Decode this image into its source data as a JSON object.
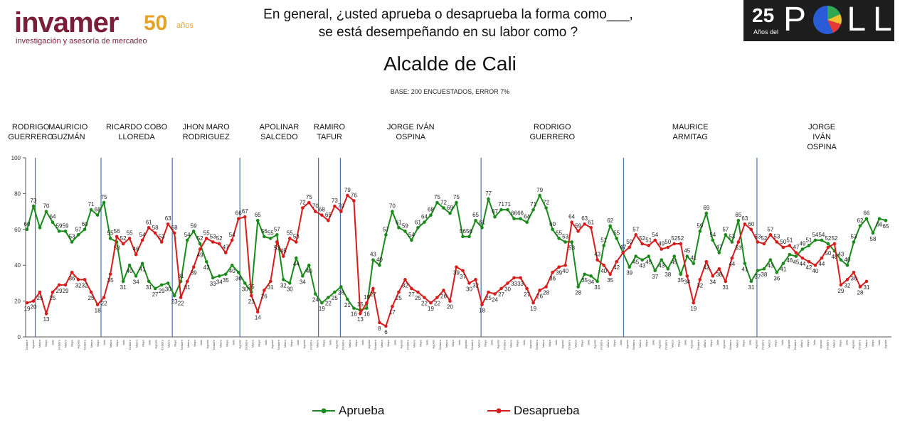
{
  "header": {
    "logo_word": "invamer",
    "logo_50": "50",
    "logo_anos": "años",
    "logo_tagline": "investigación y asesoría de mercadeo",
    "question_line1": "En general, ¿usted aprueba o desaprueba la forma como___,",
    "question_line2": "se está desempeñando en su labor como ?",
    "poll_25": "25",
    "poll_anos": "Años del",
    "poll_word": "POLL"
  },
  "chart_data": {
    "type": "line",
    "title": "Alcalde de Cali",
    "subtitle": "BASE: 200 ENCUESTADOS, ERROR 7%",
    "ylim": [
      0,
      100
    ],
    "yticks": [
      0,
      20,
      40,
      60,
      80,
      100
    ],
    "grid": false,
    "legend_position": "bottom",
    "periods": [
      {
        "label": "RODRIGO\nGUERRERO"
      },
      {
        "label": "MAURICIO\nGUZMÁN"
      },
      {
        "label": "RICARDO COBO\nLLOREDA"
      },
      {
        "label": "JHON MARO\nRODRIGUEZ"
      },
      {
        "label": "APOLINAR\nSALCEDO"
      },
      {
        "label": "RAMIRO\nTAFUR"
      },
      {
        "label": "JORGE IVÁN\nOSPINA"
      },
      {
        "label": "RODRIGO\nGUERRERO"
      },
      {
        "label": "MAURICE\nARMITAG"
      },
      {
        "label": "JORGE\nIVÁN\nOSPINA"
      }
    ],
    "series": [
      {
        "name": "Aprueba",
        "color": "#1a8a1a",
        "values": [
          60,
          73,
          61,
          70,
          64,
          59,
          59,
          53,
          57,
          60,
          71,
          68,
          75,
          55,
          53,
          31,
          40,
          34,
          41,
          31,
          27,
          29,
          30,
          23,
          31,
          54,
          59,
          52,
          42,
          33,
          34,
          35,
          40,
          36,
          30,
          25,
          65,
          56,
          55,
          57,
          32,
          30,
          44,
          34,
          40,
          24,
          19,
          22,
          25,
          28,
          21,
          16,
          15,
          16,
          43,
          40,
          57,
          70,
          61,
          59,
          54,
          61,
          64,
          68,
          75,
          72,
          69,
          75,
          56,
          56,
          65,
          61,
          77,
          67,
          71,
          71,
          66,
          66,
          64,
          71,
          79,
          72,
          60,
          55,
          53,
          53,
          28,
          35,
          34,
          31,
          51,
          62,
          55,
          47,
          39,
          45,
          43,
          45,
          37,
          43,
          38,
          45,
          35,
          45,
          41,
          59,
          69,
          54,
          47,
          57,
          53,
          65,
          41,
          31,
          37,
          38,
          43,
          36,
          41,
          46,
          45,
          49,
          51,
          54,
          54,
          52,
          48,
          43,
          40,
          53,
          62,
          66,
          58,
          66,
          65
        ],
        "labels": [
          60,
          73,
          null,
          70,
          64,
          59,
          59,
          53,
          57,
          60,
          71,
          68,
          75,
          55,
          53,
          31,
          40,
          34,
          41,
          31,
          27,
          29,
          30,
          23,
          31,
          54,
          59,
          52,
          42,
          33,
          34,
          35,
          40,
          36,
          30,
          25,
          65,
          56,
          55,
          57,
          32,
          30,
          44,
          34,
          40,
          24,
          19,
          22,
          25,
          28,
          21,
          16,
          15,
          16,
          43,
          40,
          57,
          70,
          61,
          59,
          54,
          61,
          64,
          68,
          75,
          72,
          69,
          75,
          56,
          56,
          65,
          61,
          77,
          67,
          71,
          71,
          66,
          66,
          64,
          71,
          79,
          72,
          60,
          55,
          53,
          53,
          28,
          35,
          34,
          31,
          51,
          62,
          55,
          47,
          39,
          45,
          43,
          45,
          37,
          43,
          38,
          45,
          35,
          45,
          41,
          59,
          69,
          54,
          47,
          57,
          53,
          65,
          41,
          31,
          37,
          38,
          43,
          36,
          41,
          46,
          45,
          49,
          51,
          54,
          54,
          52,
          48,
          43,
          40,
          53,
          62,
          66,
          58,
          66,
          65
        ]
      },
      {
        "name": "Desaprueba",
        "color": "#d81c1c",
        "values": [
          19,
          20,
          25,
          13,
          25,
          29,
          29,
          36,
          32,
          32,
          25,
          18,
          22,
          35,
          56,
          52,
          55,
          46,
          54,
          61,
          58,
          53,
          63,
          58,
          22,
          31,
          39,
          49,
          55,
          53,
          52,
          47,
          54,
          66,
          67,
          23,
          14,
          26,
          31,
          53,
          45,
          55,
          53,
          72,
          75,
          70,
          68,
          65,
          73,
          70,
          79,
          76,
          13,
          19,
          27,
          8,
          6,
          17,
          25,
          32,
          27,
          25,
          22,
          19,
          22,
          26,
          20,
          39,
          37,
          30,
          32,
          18,
          25,
          24,
          27,
          30,
          33,
          33,
          27,
          19,
          26,
          28,
          36,
          39,
          40,
          64,
          59,
          63,
          61,
          43,
          40,
          35,
          42,
          47,
          50,
          57,
          52,
          51,
          54,
          49,
          50,
          52,
          52,
          34,
          19,
          32,
          42,
          34,
          38,
          31,
          44,
          53,
          63,
          60,
          53,
          52,
          57,
          53,
          50,
          51,
          47,
          44,
          42,
          40,
          44,
          50,
          52,
          29,
          32,
          36,
          28,
          31
        ]
      }
    ],
    "xtick_labels": [
      "Octubre",
      "Agosto",
      "Marzo",
      "Mayo",
      "Julio",
      "Octubre",
      "Marzo",
      "Mayo",
      "Agosto",
      "Octubre",
      "Marzo",
      "Mayo",
      "Julio",
      "Marzo",
      "Mayo",
      "Julio",
      "Octubre",
      "Marzo",
      "Mayo",
      "Julio",
      "Agosto",
      "Octubre",
      "Marzo",
      "Mayo",
      "Octubre",
      "Marzo",
      "Mayo",
      "Julio",
      "Agosto",
      "Octubre",
      "Marzo",
      "Mayo",
      "Julio",
      "Agosto",
      "Octubre",
      "Marzo",
      "Mayo",
      "Julio",
      "Agosto",
      "Octubre",
      "Marzo",
      "Mayo",
      "Julio",
      "Agosto",
      "Octubre",
      "Marzo",
      "Mayo",
      "Julio",
      "Agosto",
      "Octubre",
      "Marzo",
      "Mayo",
      "Julio",
      "Agosto",
      "Octubre",
      "Marzo",
      "Mayo",
      "Julio",
      "Agosto",
      "Octubre",
      "Marzo",
      "Mayo",
      "Julio",
      "Agosto",
      "Octubre",
      "Marzo",
      "Mayo",
      "Julio",
      "Agosto",
      "Octubre",
      "Marzo",
      "Mayo",
      "Julio",
      "Agosto",
      "Octubre",
      "Marzo",
      "Mayo",
      "Julio",
      "Agosto",
      "Octubre",
      "Marzo",
      "Mayo",
      "Julio",
      "Agosto",
      "Octubre",
      "Marzo",
      "Mayo",
      "Julio",
      "Agosto",
      "Octubre",
      "Marzo",
      "Mayo",
      "Julio",
      "Agosto",
      "Octubre",
      "Marzo",
      "Mayo",
      "Julio",
      "Agosto",
      "Octubre",
      "Marzo",
      "Mayo",
      "Julio",
      "Agosto",
      "Octubre",
      "Marzo",
      "Mayo",
      "Julio",
      "Agosto",
      "Octubre",
      "Marzo",
      "Mayo",
      "Julio",
      "Agosto",
      "Octubre",
      "Marzo",
      "Mayo",
      "Julio",
      "Agosto",
      "Octubre",
      "Marzo",
      "Mayo",
      "Julio",
      "Agosto",
      "Octubre",
      "Marzo",
      "Mayo",
      "Julio",
      "Agosto",
      "Octubre",
      "Marzo",
      "Mayo",
      "Julio",
      "Agosto"
    ]
  }
}
